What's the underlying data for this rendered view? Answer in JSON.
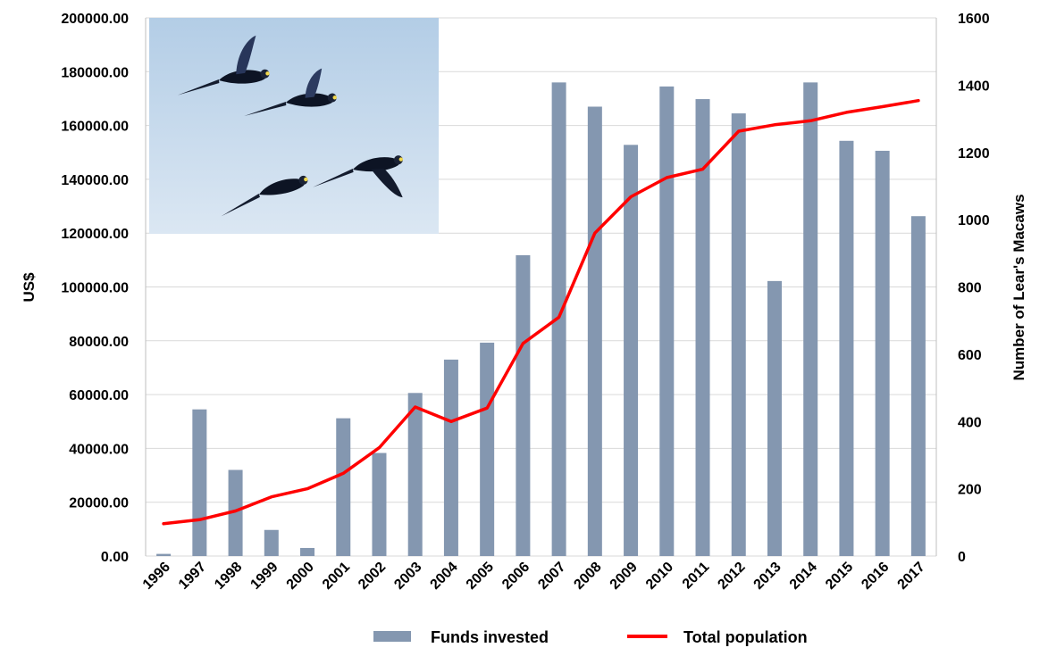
{
  "chart_data": {
    "type": "bar",
    "categories": [
      "1996",
      "1997",
      "1998",
      "1999",
      "2000",
      "2001",
      "2002",
      "2003",
      "2004",
      "2005",
      "2006",
      "2007",
      "2008",
      "2009",
      "2010",
      "2011",
      "2012",
      "2013",
      "2014",
      "2015",
      "2016",
      "2017"
    ],
    "series": [
      {
        "name": "Funds invested",
        "type": "bar",
        "axis": "left",
        "color": "#8497b0",
        "values": [
          800,
          54500,
          32000,
          9700,
          3000,
          51200,
          38300,
          60600,
          73000,
          79300,
          111800,
          176000,
          167000,
          152800,
          174500,
          169800,
          164500,
          102200,
          176000,
          154300,
          150600,
          126300
        ]
      },
      {
        "name": "Total population",
        "type": "line",
        "axis": "right",
        "color": "#ff0000",
        "values": [
          96,
          108,
          134,
          176,
          200,
          246,
          322,
          443,
          400,
          440,
          632,
          710,
          960,
          1068,
          1125,
          1150,
          1263,
          1282,
          1294,
          1319,
          1336,
          1354
        ]
      }
    ],
    "ylabel": "US$",
    "ylabel_right": "Number of Lear's Macaws",
    "ylim": [
      0,
      200000
    ],
    "ylim_right": [
      0,
      1600
    ],
    "yticks": [
      "0.00",
      "20000.00",
      "40000.00",
      "60000.00",
      "80000.00",
      "100000.00",
      "120000.00",
      "140000.00",
      "160000.00",
      "180000.00",
      "200000.00"
    ],
    "yticks_right": [
      "0",
      "200",
      "400",
      "600",
      "800",
      "1000",
      "1200",
      "1400",
      "1600"
    ],
    "grid": true,
    "legend": "bottom-center",
    "inset_photo": "lears-macaws-flying-photo"
  }
}
